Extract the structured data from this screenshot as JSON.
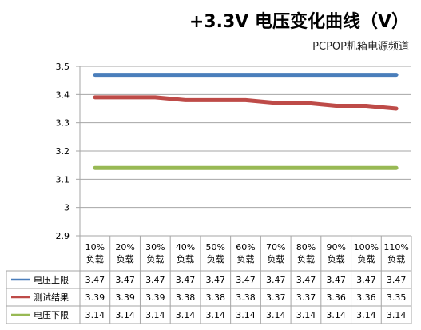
{
  "chart_data": {
    "type": "line",
    "title": "+3.3V 电压变化曲线（V）",
    "subtitle": "PCPOP机箱电源频道",
    "categories": [
      "10%负载",
      "20%负载",
      "30%负载",
      "40%负载",
      "50%负载",
      "60%负载",
      "70%负载",
      "80%负载",
      "90%负载",
      "100%负载",
      "110%负载"
    ],
    "categories_lines": [
      [
        "10%",
        "负载"
      ],
      [
        "20%",
        "负载"
      ],
      [
        "30%",
        "负载"
      ],
      [
        "40%",
        "负载"
      ],
      [
        "50%",
        "负载"
      ],
      [
        "60%",
        "负载"
      ],
      [
        "70%",
        "负载"
      ],
      [
        "80%",
        "负载"
      ],
      [
        "90%",
        "负载"
      ],
      [
        "100%",
        "负载"
      ],
      [
        "110%",
        "负载"
      ]
    ],
    "series": [
      {
        "name": "电压上限",
        "color": "#4a7ebb",
        "values": [
          3.47,
          3.47,
          3.47,
          3.47,
          3.47,
          3.47,
          3.47,
          3.47,
          3.47,
          3.47,
          3.47
        ]
      },
      {
        "name": "测试结果",
        "color": "#be4b48",
        "values": [
          3.39,
          3.39,
          3.39,
          3.38,
          3.38,
          3.38,
          3.37,
          3.37,
          3.36,
          3.36,
          3.35
        ]
      },
      {
        "name": "电压下限",
        "color": "#98b954",
        "values": [
          3.14,
          3.14,
          3.14,
          3.14,
          3.14,
          3.14,
          3.14,
          3.14,
          3.14,
          3.14,
          3.14
        ]
      }
    ],
    "ylim": [
      2.9,
      3.5
    ],
    "yticks": [
      "3.5",
      "3.4",
      "3.3",
      "3.2",
      "3.1",
      "3",
      "2.9"
    ],
    "grid": true,
    "legend": "data-table"
  }
}
